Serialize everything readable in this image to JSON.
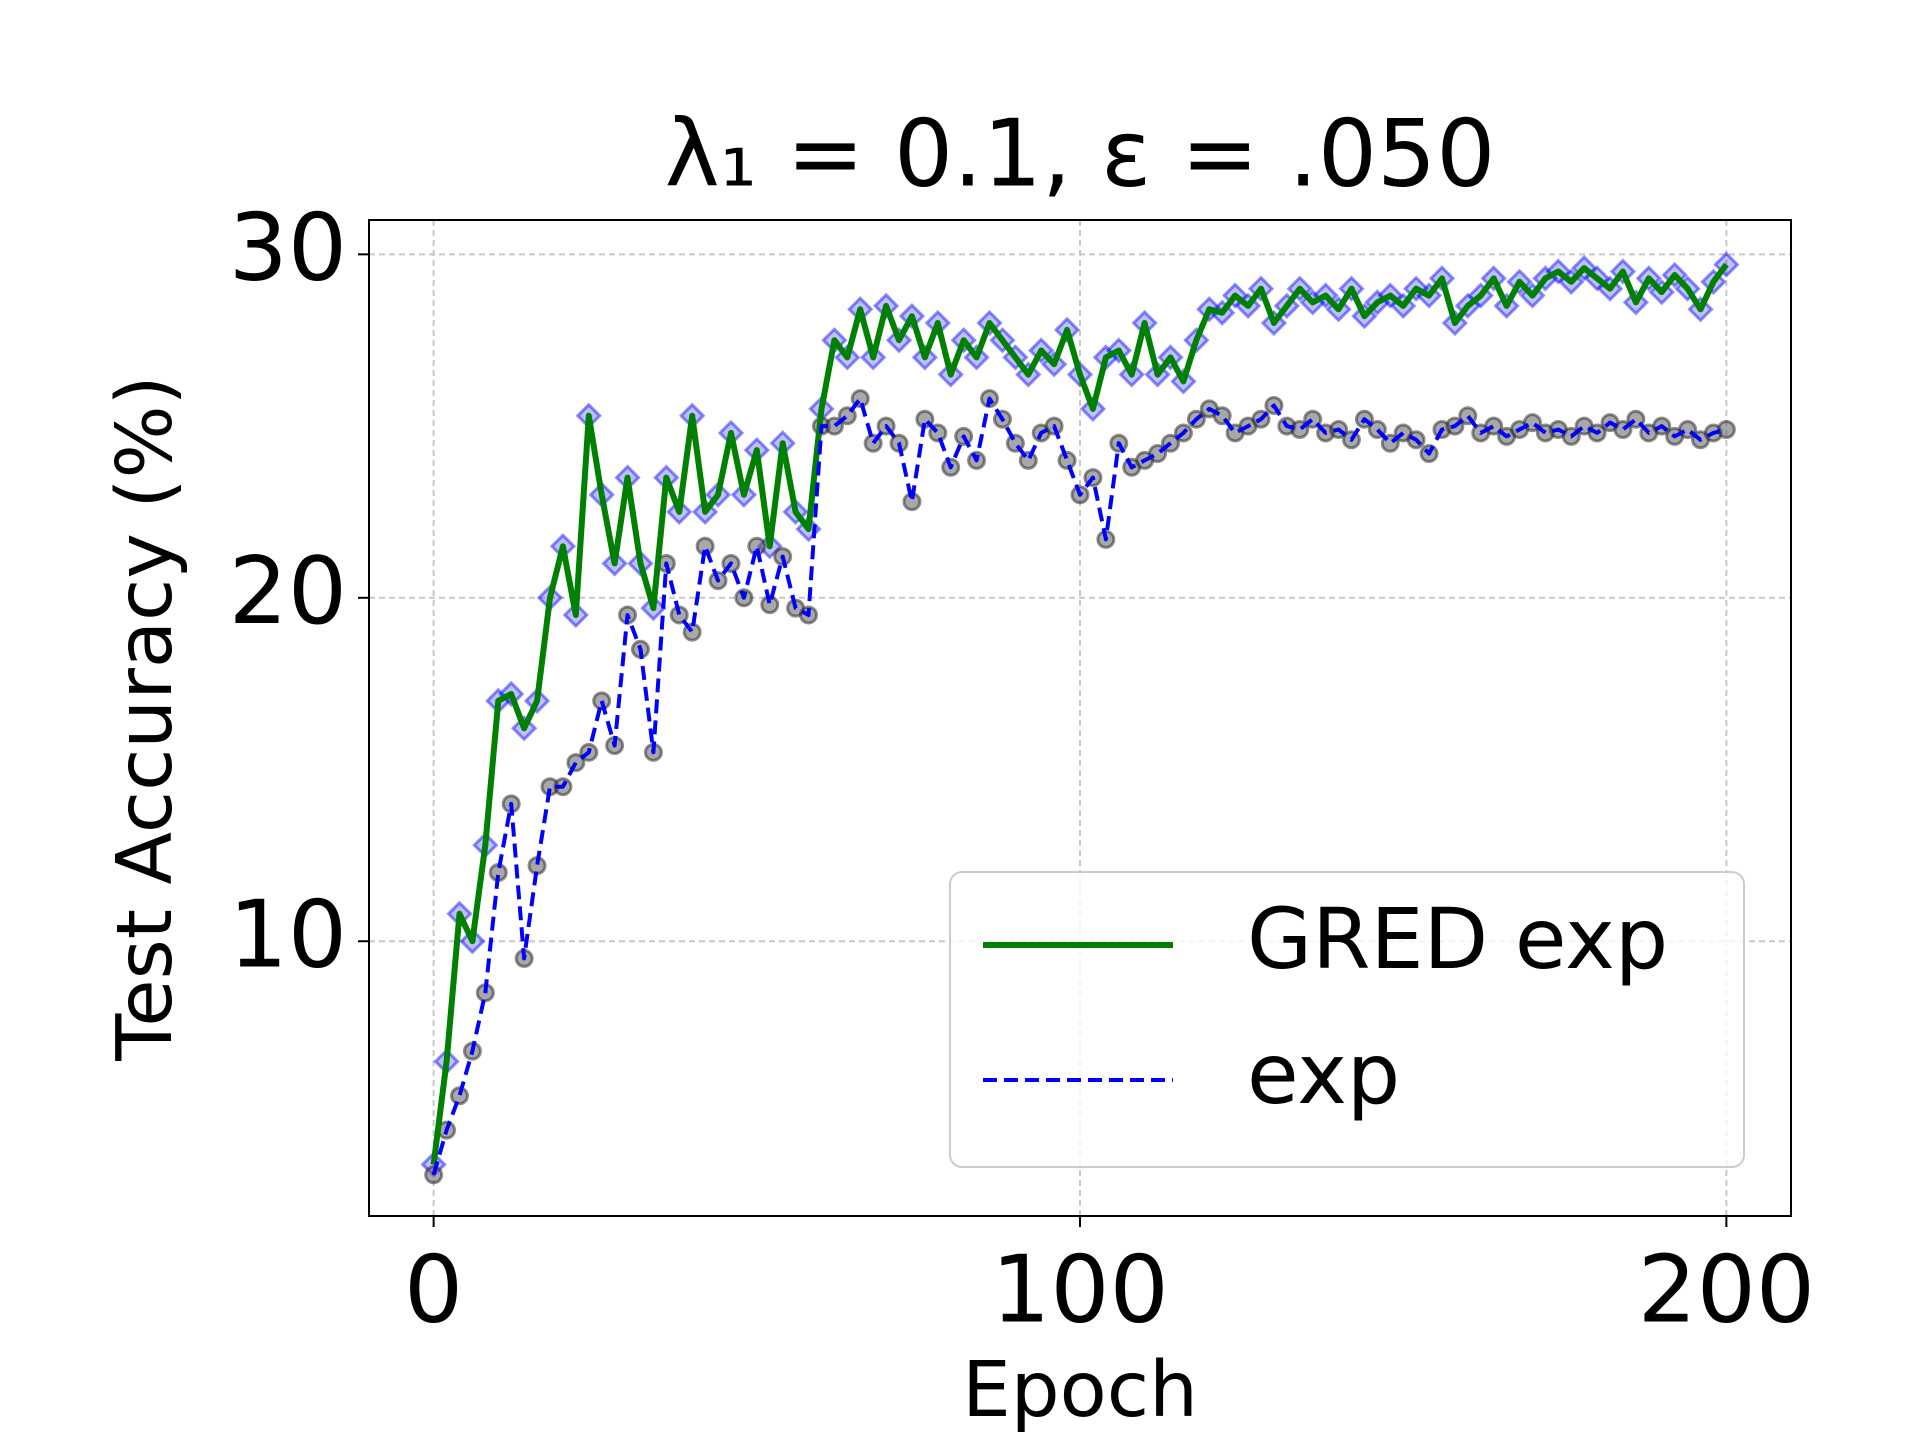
{
  "chart_data": {
    "type": "line",
    "title": "λ₁ = 0.1, ε = .050",
    "x_label": "Epoch",
    "y_label": "Test Accuracy (%)",
    "x": [
      0,
      2,
      4,
      6,
      8,
      10,
      12,
      14,
      16,
      18,
      20,
      22,
      24,
      26,
      28,
      30,
      32,
      34,
      36,
      38,
      40,
      42,
      44,
      46,
      48,
      50,
      52,
      54,
      56,
      58,
      60,
      62,
      64,
      66,
      68,
      70,
      72,
      74,
      76,
      78,
      80,
      82,
      84,
      86,
      88,
      90,
      92,
      94,
      96,
      98,
      100,
      102,
      104,
      106,
      108,
      110,
      112,
      114,
      116,
      118,
      120,
      122,
      124,
      126,
      128,
      130,
      132,
      134,
      136,
      138,
      140,
      142,
      144,
      146,
      148,
      150,
      152,
      154,
      156,
      158,
      160,
      162,
      164,
      166,
      168,
      170,
      172,
      174,
      176,
      178,
      180,
      182,
      184,
      186,
      188,
      190,
      192,
      194,
      196,
      198,
      200
    ],
    "series": [
      {
        "name": "GRED exp",
        "color": "#008000",
        "dashed": false,
        "marker": "diamond",
        "marker_color": "#0000ff",
        "values": [
          3.5,
          6.5,
          10.8,
          10,
          12.8,
          17,
          17.2,
          16.2,
          17,
          20,
          21.5,
          19.5,
          25.3,
          23,
          21,
          23.5,
          21,
          19.7,
          23.5,
          22.5,
          25.3,
          22.5,
          23,
          24.8,
          23,
          24.3,
          21.5,
          24.5,
          22.5,
          22,
          25.5,
          27.5,
          27,
          28.4,
          27,
          28.5,
          27.5,
          28.2,
          27,
          28,
          26.5,
          27.5,
          27,
          28,
          27.5,
          27,
          26.5,
          27.2,
          26.8,
          27.8,
          26.5,
          25.5,
          27,
          27.2,
          26.5,
          28,
          26.5,
          27,
          26.3,
          27.5,
          28.4,
          28.3,
          28.8,
          28.5,
          29,
          28,
          28.5,
          29,
          28.6,
          28.8,
          28.4,
          29,
          28.2,
          28.6,
          28.8,
          28.5,
          29,
          28.8,
          29.3,
          28,
          28.5,
          28.8,
          29.3,
          28.5,
          29.2,
          28.8,
          29.3,
          29.5,
          29.2,
          29.6,
          29.3,
          29,
          29.5,
          28.6,
          29.3,
          28.9,
          29.4,
          29,
          28.4,
          29.2,
          29.7
        ]
      },
      {
        "name": "exp",
        "color": "#0000ff",
        "dashed": true,
        "marker": "circle",
        "marker_color": "#606060",
        "values": [
          3.2,
          4.5,
          5.5,
          6.8,
          8.5,
          12,
          14,
          9.5,
          12.2,
          14.5,
          14.5,
          15.2,
          15.5,
          17,
          15.7,
          19.5,
          18.5,
          15.5,
          21,
          19.5,
          19,
          21.5,
          20.5,
          21,
          20,
          21.5,
          19.8,
          21.2,
          19.7,
          19.5,
          25,
          25,
          25.3,
          25.8,
          24.5,
          25,
          24.5,
          22.8,
          25.2,
          24.8,
          23.8,
          24.7,
          24,
          25.8,
          25.2,
          24.5,
          24,
          24.8,
          25,
          24,
          23,
          23.5,
          21.7,
          24.5,
          23.8,
          24,
          24.2,
          24.5,
          24.8,
          25.2,
          25.5,
          25.3,
          24.8,
          25,
          25.2,
          25.6,
          25,
          24.9,
          25.2,
          24.8,
          24.9,
          24.6,
          25.2,
          24.9,
          24.5,
          24.8,
          24.6,
          24.2,
          24.9,
          25,
          25.3,
          24.8,
          25,
          24.7,
          24.9,
          25.1,
          24.8,
          24.9,
          24.7,
          25,
          24.8,
          25.1,
          24.9,
          25.2,
          24.8,
          25,
          24.7,
          24.9,
          24.6,
          24.8,
          24.9
        ]
      }
    ],
    "xlim": [
      -10,
      210
    ],
    "ylim": [
      2,
      31
    ],
    "xticks": [
      0,
      100,
      200
    ],
    "yticks": [
      10,
      20,
      30
    ],
    "grid": true,
    "legend": "lower right"
  }
}
